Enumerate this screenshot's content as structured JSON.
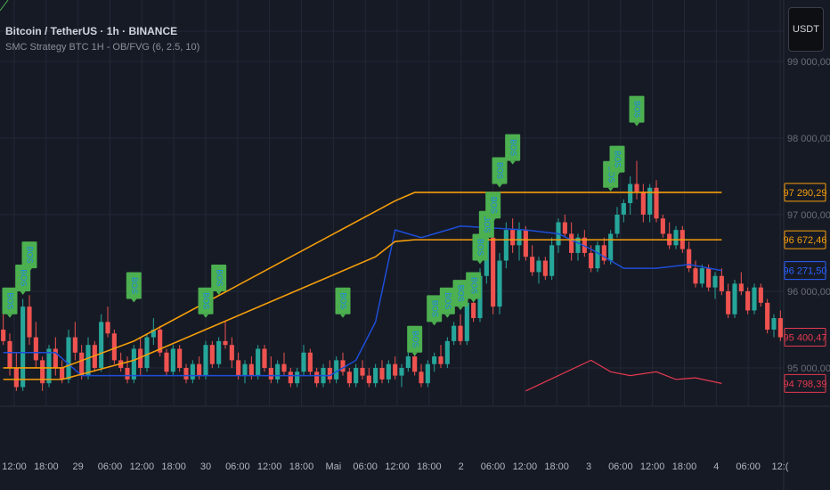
{
  "header": {
    "title": "Bitcoin / TetherUS · 1h · BINANCE",
    "indicator": "SMC Strategy BTC 1H - OB/FVG (6, 2.5, 10)"
  },
  "currency_button": "USDT",
  "colors": {
    "background": "#161a25",
    "grid": "#232838",
    "bull": "#26a69a",
    "bear": "#ef5350",
    "orange": "#f59e0b",
    "navy": "#1d4ed8",
    "bos_box": "#4caf50",
    "bos_text": "#1e88e5",
    "equity": "#e53950"
  },
  "chart_data": {
    "type": "candlestick",
    "symbol": "Bitcoin / TetherUS",
    "interval": "1h",
    "exchange": "BINANCE",
    "y_range": [
      94500,
      99800
    ],
    "y_ticks": [
      {
        "value": 99000,
        "label": "99 000,00"
      },
      {
        "value": 98000,
        "label": "98 000,00"
      },
      {
        "value": 97000,
        "label": "97 000,00"
      },
      {
        "value": 96000,
        "label": "96 000,00"
      },
      {
        "value": 95000,
        "label": "95 000,00"
      }
    ],
    "x_ticks": [
      "12:00",
      "18:00",
      "29",
      "06:00",
      "12:00",
      "18:00",
      "30",
      "06:00",
      "12:00",
      "18:00",
      "Mai",
      "06:00",
      "12:00",
      "18:00",
      "2",
      "06:00",
      "12:00",
      "18:00",
      "3",
      "06:00",
      "12:00",
      "18:00",
      "4",
      "06:00",
      "12:("
    ],
    "price_labels": [
      {
        "value": 97290.29,
        "label": "97 290,29",
        "kind": "orange"
      },
      {
        "value": 96672.46,
        "label": "96 672,46",
        "kind": "orange"
      },
      {
        "value": 96271.5,
        "label": "96 271,50",
        "kind": "blue"
      },
      {
        "value": 95400.47,
        "label": "95 400,47",
        "kind": "red"
      },
      {
        "value": 94798.39,
        "label": "94 798,39",
        "kind": "red"
      }
    ],
    "candles": [
      [
        95500,
        95700,
        95300,
        95350
      ],
      [
        95350,
        95450,
        94900,
        95000
      ],
      [
        95000,
        95200,
        94700,
        94750
      ],
      [
        94750,
        95900,
        94700,
        95800
      ],
      [
        95800,
        95950,
        95300,
        95400
      ],
      [
        95400,
        95600,
        95000,
        95100
      ],
      [
        95100,
        95150,
        94700,
        94800
      ],
      [
        94800,
        95300,
        94750,
        95250
      ],
      [
        95250,
        95400,
        94900,
        95000
      ],
      [
        95000,
        95100,
        94800,
        94850
      ],
      [
        94850,
        95500,
        94800,
        95400
      ],
      [
        95400,
        95600,
        95100,
        95200
      ],
      [
        95200,
        95300,
        94850,
        94900
      ],
      [
        94900,
        95400,
        94850,
        95300
      ],
      [
        95300,
        95350,
        94950,
        95000
      ],
      [
        95000,
        95700,
        94950,
        95600
      ],
      [
        95600,
        95800,
        95400,
        95450
      ],
      [
        95450,
        95500,
        95050,
        95100
      ],
      [
        95100,
        95200,
        94950,
        95000
      ],
      [
        95000,
        95150,
        94800,
        94850
      ],
      [
        94850,
        95300,
        94800,
        95250
      ],
      [
        95250,
        95400,
        94900,
        95000
      ],
      [
        95000,
        95450,
        94950,
        95400
      ],
      [
        95400,
        95650,
        95300,
        95500
      ],
      [
        95500,
        95550,
        95150,
        95200
      ],
      [
        95200,
        95250,
        94900,
        94950
      ],
      [
        94950,
        95300,
        94900,
        95250
      ],
      [
        95250,
        95300,
        94950,
        95000
      ],
      [
        95000,
        95050,
        94800,
        94850
      ],
      [
        94850,
        95100,
        94800,
        95050
      ],
      [
        95050,
        95150,
        94850,
        94900
      ],
      [
        94900,
        95350,
        94850,
        95300
      ],
      [
        95300,
        95350,
        95000,
        95050
      ],
      [
        95050,
        95400,
        95000,
        95350
      ],
      [
        95350,
        95600,
        95250,
        95300
      ],
      [
        95300,
        95400,
        95000,
        95100
      ],
      [
        95100,
        95200,
        94850,
        94900
      ],
      [
        94900,
        95100,
        94800,
        95050
      ],
      [
        95050,
        95150,
        94850,
        94900
      ],
      [
        94900,
        95300,
        94850,
        95250
      ],
      [
        95250,
        95300,
        94950,
        95000
      ],
      [
        95000,
        95150,
        94800,
        94850
      ],
      [
        94850,
        95100,
        94800,
        95050
      ],
      [
        95050,
        95200,
        94900,
        94950
      ],
      [
        94950,
        95000,
        94750,
        94800
      ],
      [
        94800,
        95000,
        94750,
        94950
      ],
      [
        94950,
        95300,
        94900,
        95200
      ],
      [
        95200,
        95250,
        94900,
        94950
      ],
      [
        94950,
        95000,
        94750,
        94800
      ],
      [
        94800,
        95050,
        94750,
        95000
      ],
      [
        95000,
        95100,
        94800,
        94850
      ],
      [
        94850,
        95150,
        94800,
        95100
      ],
      [
        95100,
        95200,
        94900,
        94950
      ],
      [
        94950,
        95000,
        94750,
        94800
      ],
      [
        94800,
        95050,
        94750,
        95000
      ],
      [
        95000,
        95100,
        94850,
        94900
      ],
      [
        94900,
        95000,
        94750,
        94800
      ],
      [
        94800,
        95050,
        94750,
        95000
      ],
      [
        95000,
        95100,
        94800,
        94850
      ],
      [
        94850,
        95100,
        94800,
        95050
      ],
      [
        95050,
        95150,
        94850,
        94900
      ],
      [
        94900,
        95050,
        94750,
        95000
      ],
      [
        95000,
        95200,
        94950,
        95150
      ],
      [
        95150,
        95250,
        94900,
        94950
      ],
      [
        94950,
        95050,
        94750,
        94800
      ],
      [
        94800,
        95100,
        94750,
        95050
      ],
      [
        95050,
        95200,
        94950,
        95150
      ],
      [
        95150,
        95300,
        95000,
        95050
      ],
      [
        95050,
        95400,
        95000,
        95350
      ],
      [
        95350,
        95600,
        95300,
        95550
      ],
      [
        95550,
        95700,
        95300,
        95350
      ],
      [
        95350,
        95900,
        95300,
        95850
      ],
      [
        95850,
        96000,
        95600,
        95650
      ],
      [
        95650,
        96300,
        95600,
        96200
      ],
      [
        96200,
        96800,
        96100,
        96700
      ],
      [
        96700,
        96900,
        95700,
        95800
      ],
      [
        95800,
        96500,
        95700,
        96400
      ],
      [
        96400,
        96900,
        96300,
        96800
      ],
      [
        96800,
        96950,
        96500,
        96600
      ],
      [
        96600,
        96900,
        96400,
        96800
      ],
      [
        96800,
        96850,
        96400,
        96450
      ],
      [
        96450,
        96600,
        96200,
        96250
      ],
      [
        96250,
        96450,
        96100,
        96400
      ],
      [
        96400,
        96450,
        96150,
        96200
      ],
      [
        96200,
        96700,
        96150,
        96600
      ],
      [
        96600,
        96950,
        96500,
        96900
      ],
      [
        96900,
        97000,
        96700,
        96750
      ],
      [
        96750,
        96900,
        96400,
        96500
      ],
      [
        96500,
        96750,
        96400,
        96700
      ],
      [
        96700,
        96800,
        96450,
        96500
      ],
      [
        96500,
        96600,
        96250,
        96300
      ],
      [
        96300,
        96650,
        96250,
        96600
      ],
      [
        96600,
        96700,
        96350,
        96400
      ],
      [
        96400,
        96800,
        96350,
        96750
      ],
      [
        96750,
        97100,
        96700,
        97000
      ],
      [
        97000,
        97200,
        96900,
        97150
      ],
      [
        97150,
        97500,
        97000,
        97400
      ],
      [
        97400,
        97700,
        97200,
        97300
      ],
      [
        97300,
        97400,
        96900,
        97000
      ],
      [
        97000,
        97400,
        96900,
        97350
      ],
      [
        97350,
        97450,
        96900,
        96950
      ],
      [
        96950,
        97000,
        96700,
        96750
      ],
      [
        96750,
        96900,
        96550,
        96600
      ],
      [
        96600,
        96850,
        96550,
        96800
      ],
      [
        96800,
        96850,
        96500,
        96550
      ],
      [
        96550,
        96650,
        96250,
        96300
      ],
      [
        96300,
        96400,
        96050,
        96100
      ],
      [
        96100,
        96350,
        96050,
        96300
      ],
      [
        96300,
        96350,
        96000,
        96050
      ],
      [
        96050,
        96250,
        95900,
        96200
      ],
      [
        96200,
        96300,
        95950,
        96000
      ],
      [
        96000,
        96100,
        95650,
        95700
      ],
      [
        95700,
        96150,
        95650,
        96100
      ],
      [
        96100,
        96250,
        95950,
        96000
      ],
      [
        96000,
        96050,
        95700,
        95750
      ],
      [
        95750,
        96100,
        95700,
        96050
      ],
      [
        96050,
        96100,
        95800,
        95850
      ],
      [
        95850,
        95900,
        95450,
        95500
      ],
      [
        95500,
        95700,
        95400,
        95650
      ],
      [
        95650,
        95750,
        95350,
        95400
      ]
    ],
    "orange_line_upper": [
      [
        0,
        95000
      ],
      [
        9,
        95000
      ],
      [
        20,
        95350
      ],
      [
        60,
        97180
      ],
      [
        63,
        97290
      ],
      [
        110,
        97290
      ]
    ],
    "orange_line_lower": [
      [
        0,
        94850
      ],
      [
        9,
        94850
      ],
      [
        20,
        95100
      ],
      [
        57,
        96450
      ],
      [
        60,
        96650
      ],
      [
        63,
        96672
      ],
      [
        110,
        96672
      ]
    ],
    "navy_line": [
      [
        0,
        95200
      ],
      [
        8,
        95200
      ],
      [
        12,
        94900
      ],
      [
        50,
        94900
      ],
      [
        54,
        95100
      ],
      [
        57,
        95600
      ],
      [
        60,
        96800
      ],
      [
        64,
        96700
      ],
      [
        70,
        96850
      ],
      [
        80,
        96800
      ],
      [
        85,
        96750
      ],
      [
        90,
        96550
      ],
      [
        95,
        96300
      ],
      [
        100,
        96300
      ],
      [
        105,
        96350
      ],
      [
        110,
        96271
      ]
    ],
    "equity_line": [
      [
        80,
        94700
      ],
      [
        85,
        94900
      ],
      [
        90,
        95100
      ],
      [
        93,
        94950
      ],
      [
        96,
        94900
      ],
      [
        100,
        94950
      ],
      [
        103,
        94850
      ],
      [
        106,
        94870
      ],
      [
        110,
        94798
      ]
    ],
    "bos_markers": [
      {
        "label": "BOS",
        "candle": 1,
        "price": 95700
      },
      {
        "label": "BOS",
        "candle": 3,
        "price": 96000
      },
      {
        "label": "BOS",
        "candle": 4,
        "price": 96300
      },
      {
        "label": "BOS",
        "candle": 20,
        "price": 95900
      },
      {
        "label": "BOS",
        "candle": 31,
        "price": 95700
      },
      {
        "label": "BOS",
        "candle": 33,
        "price": 96000
      },
      {
        "label": "BOS",
        "candle": 52,
        "price": 95700
      },
      {
        "label": "BOS",
        "candle": 63,
        "price": 95200
      },
      {
        "label": "BOS",
        "candle": 66,
        "price": 95600
      },
      {
        "label": "BOS",
        "candle": 68,
        "price": 95700
      },
      {
        "label": "BOS",
        "candle": 70,
        "price": 95800
      },
      {
        "label": "BOS",
        "candle": 72,
        "price": 95900
      },
      {
        "label": "BOS",
        "candle": 73,
        "price": 96400
      },
      {
        "label": "BOS",
        "candle": 74,
        "price": 96700
      },
      {
        "label": "BOS",
        "candle": 75,
        "price": 96950
      },
      {
        "label": "BOS",
        "candle": 76,
        "price": 97400
      },
      {
        "label": "BOS",
        "candle": 78,
        "price": 97700
      },
      {
        "label": "BOS",
        "candle": 93,
        "price": 97350
      },
      {
        "label": "BOS",
        "candle": 94,
        "price": 97550
      },
      {
        "label": "BOS",
        "candle": 97,
        "price": 98200
      }
    ]
  }
}
